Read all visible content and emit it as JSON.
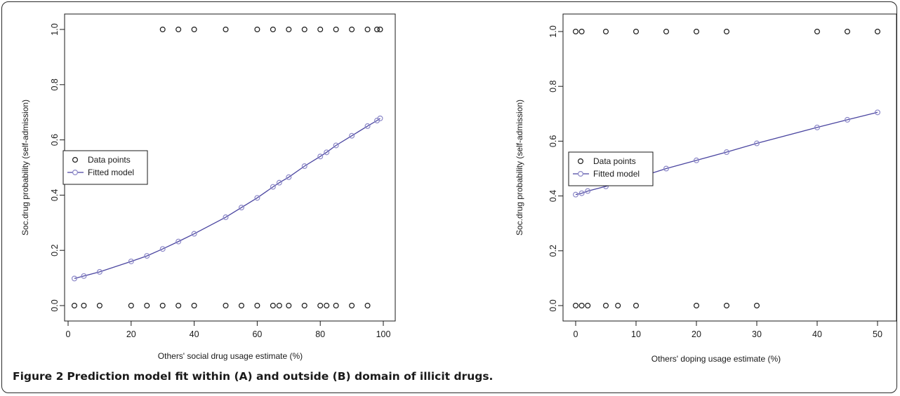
{
  "colors": {
    "points": "#1a1a1a",
    "fit": "#4a45a0",
    "fit_marker": "#8c88c8"
  },
  "caption": {
    "label": "Figure 2",
    "text": "Prediction model fit within (A) and outside (B) domain of illicit drugs."
  },
  "chart_data": [
    {
      "type": "scatter",
      "xlabel": "Others' social drug usage estimate (%)",
      "ylabel": "Soc.drug probability (self-admission)",
      "xlim": [
        0,
        100
      ],
      "ylim": [
        0,
        1
      ],
      "xticks": [
        "0",
        "20",
        "40",
        "60",
        "80",
        "100"
      ],
      "yticks": [
        "0.0",
        "0.2",
        "0.4",
        "0.6",
        "0.8",
        "1.0"
      ],
      "grid": false,
      "legend": {
        "position": "center-left",
        "entries": [
          "Data points",
          "Fitted model"
        ]
      },
      "series": [
        {
          "name": "Data points",
          "marker": "open-circle",
          "points": [
            [
              30,
              1
            ],
            [
              35,
              1
            ],
            [
              40,
              1
            ],
            [
              50,
              1
            ],
            [
              60,
              1
            ],
            [
              65,
              1
            ],
            [
              70,
              1
            ],
            [
              75,
              1
            ],
            [
              80,
              1
            ],
            [
              85,
              1
            ],
            [
              90,
              1
            ],
            [
              95,
              1
            ],
            [
              98,
              1
            ],
            [
              99,
              1
            ],
            [
              2,
              0
            ],
            [
              5,
              0
            ],
            [
              10,
              0
            ],
            [
              20,
              0
            ],
            [
              25,
              0
            ],
            [
              30,
              0
            ],
            [
              35,
              0
            ],
            [
              40,
              0
            ],
            [
              50,
              0
            ],
            [
              55,
              0
            ],
            [
              60,
              0
            ],
            [
              65,
              0
            ],
            [
              67,
              0
            ],
            [
              70,
              0
            ],
            [
              75,
              0
            ],
            [
              80,
              0
            ],
            [
              82,
              0
            ],
            [
              85,
              0
            ],
            [
              90,
              0
            ],
            [
              95,
              0
            ]
          ]
        },
        {
          "name": "Fitted model",
          "marker": "line-circle",
          "points": [
            [
              2,
              0.098
            ],
            [
              5,
              0.107
            ],
            [
              10,
              0.122
            ],
            [
              20,
              0.16
            ],
            [
              25,
              0.18
            ],
            [
              30,
              0.205
            ],
            [
              35,
              0.232
            ],
            [
              40,
              0.26
            ],
            [
              50,
              0.32
            ],
            [
              55,
              0.355
            ],
            [
              60,
              0.39
            ],
            [
              65,
              0.43
            ],
            [
              67,
              0.445
            ],
            [
              70,
              0.465
            ],
            [
              75,
              0.505
            ],
            [
              80,
              0.54
            ],
            [
              82,
              0.555
            ],
            [
              85,
              0.58
            ],
            [
              90,
              0.615
            ],
            [
              95,
              0.65
            ],
            [
              98,
              0.67
            ],
            [
              99,
              0.678
            ]
          ]
        }
      ]
    },
    {
      "type": "scatter",
      "xlabel": "Others' doping usage estimate (%)",
      "ylabel": "Soc.drug probability (self-admission)",
      "xlim": [
        0,
        50
      ],
      "ylim": [
        0,
        1
      ],
      "xticks": [
        "0",
        "10",
        "20",
        "30",
        "40",
        "50"
      ],
      "yticks": [
        "0.0",
        "0.2",
        "0.4",
        "0.6",
        "0.8",
        "1.0"
      ],
      "grid": false,
      "legend": {
        "position": "center-left",
        "entries": [
          "Data points",
          "Fitted model"
        ]
      },
      "series": [
        {
          "name": "Data points",
          "marker": "open-circle",
          "points": [
            [
              0,
              1
            ],
            [
              1,
              1
            ],
            [
              5,
              1
            ],
            [
              10,
              1
            ],
            [
              15,
              1
            ],
            [
              20,
              1
            ],
            [
              25,
              1
            ],
            [
              40,
              1
            ],
            [
              45,
              1
            ],
            [
              50,
              1
            ],
            [
              0,
              0
            ],
            [
              1,
              0
            ],
            [
              2,
              0
            ],
            [
              5,
              0
            ],
            [
              7,
              0
            ],
            [
              10,
              0
            ],
            [
              20,
              0
            ],
            [
              25,
              0
            ],
            [
              30,
              0
            ]
          ]
        },
        {
          "name": "Fitted model",
          "marker": "line-circle",
          "points": [
            [
              0,
              0.405
            ],
            [
              1,
              0.41
            ],
            [
              2,
              0.418
            ],
            [
              5,
              0.435
            ],
            [
              7,
              0.45
            ],
            [
              10,
              0.465
            ],
            [
              15,
              0.5
            ],
            [
              20,
              0.53
            ],
            [
              25,
              0.56
            ],
            [
              30,
              0.592
            ],
            [
              40,
              0.65
            ],
            [
              45,
              0.678
            ],
            [
              50,
              0.705
            ]
          ]
        }
      ]
    }
  ]
}
